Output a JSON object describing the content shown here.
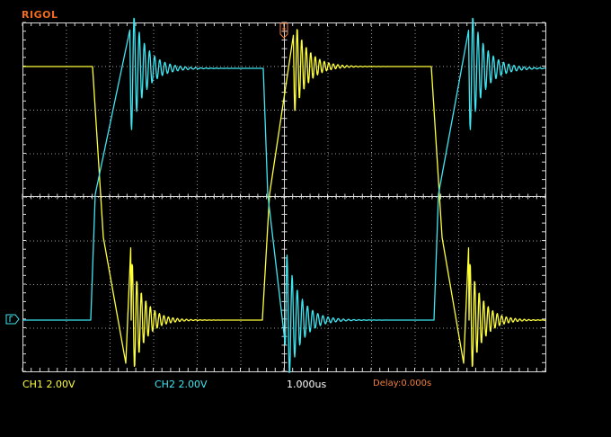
{
  "brand": "RIGOL",
  "status": {
    "ch1_scale": "CH1 2.00V",
    "ch2_scale": "CH2 2.00V",
    "timebase": "1.000us",
    "delay": "Delay:0.000s"
  },
  "colors": {
    "ch1": "#ffff3a",
    "ch2": "#3ee6f2",
    "brand": "#f06a1e",
    "delay": "#f07d3a",
    "grid": "#d9d9d9"
  },
  "icons": {
    "trigger_marker": "trigger-position-icon",
    "ch2_level": "ch2-ground-marker-icon"
  }
}
